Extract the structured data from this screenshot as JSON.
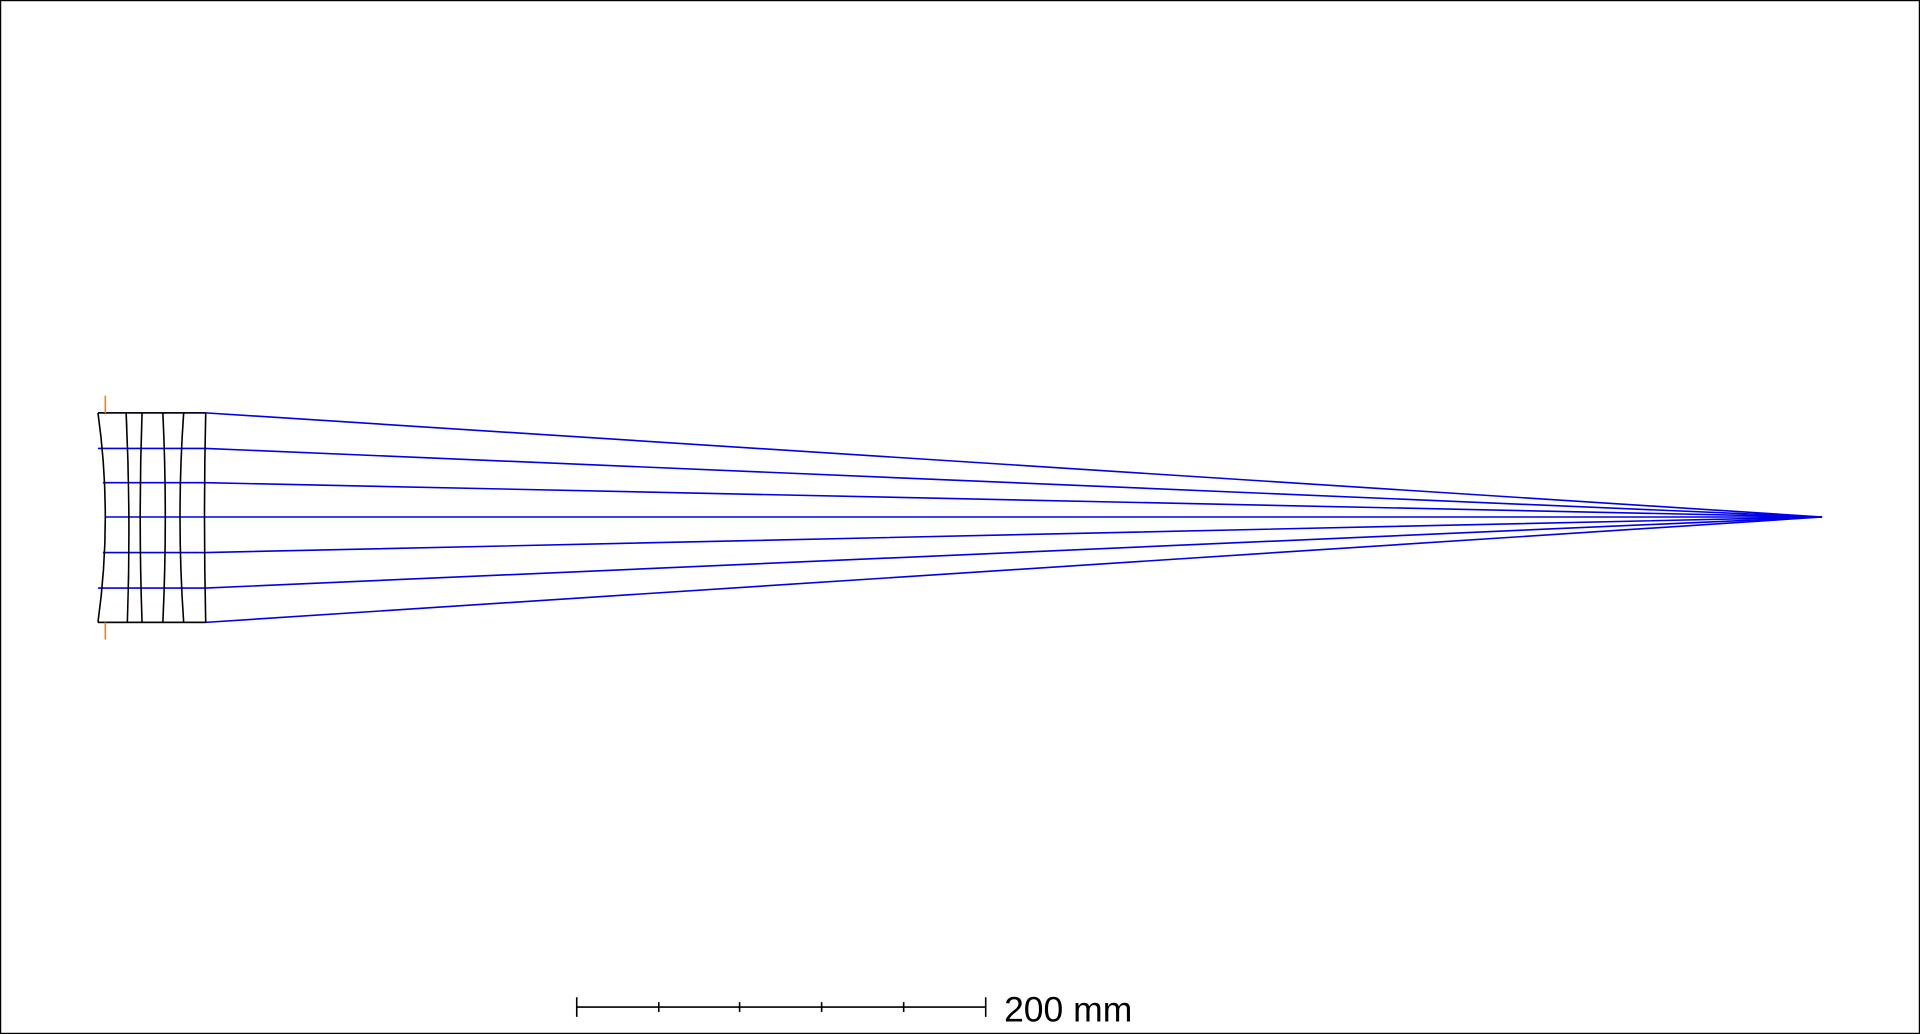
{
  "scale_bar": {
    "label": "200 mm"
  }
}
